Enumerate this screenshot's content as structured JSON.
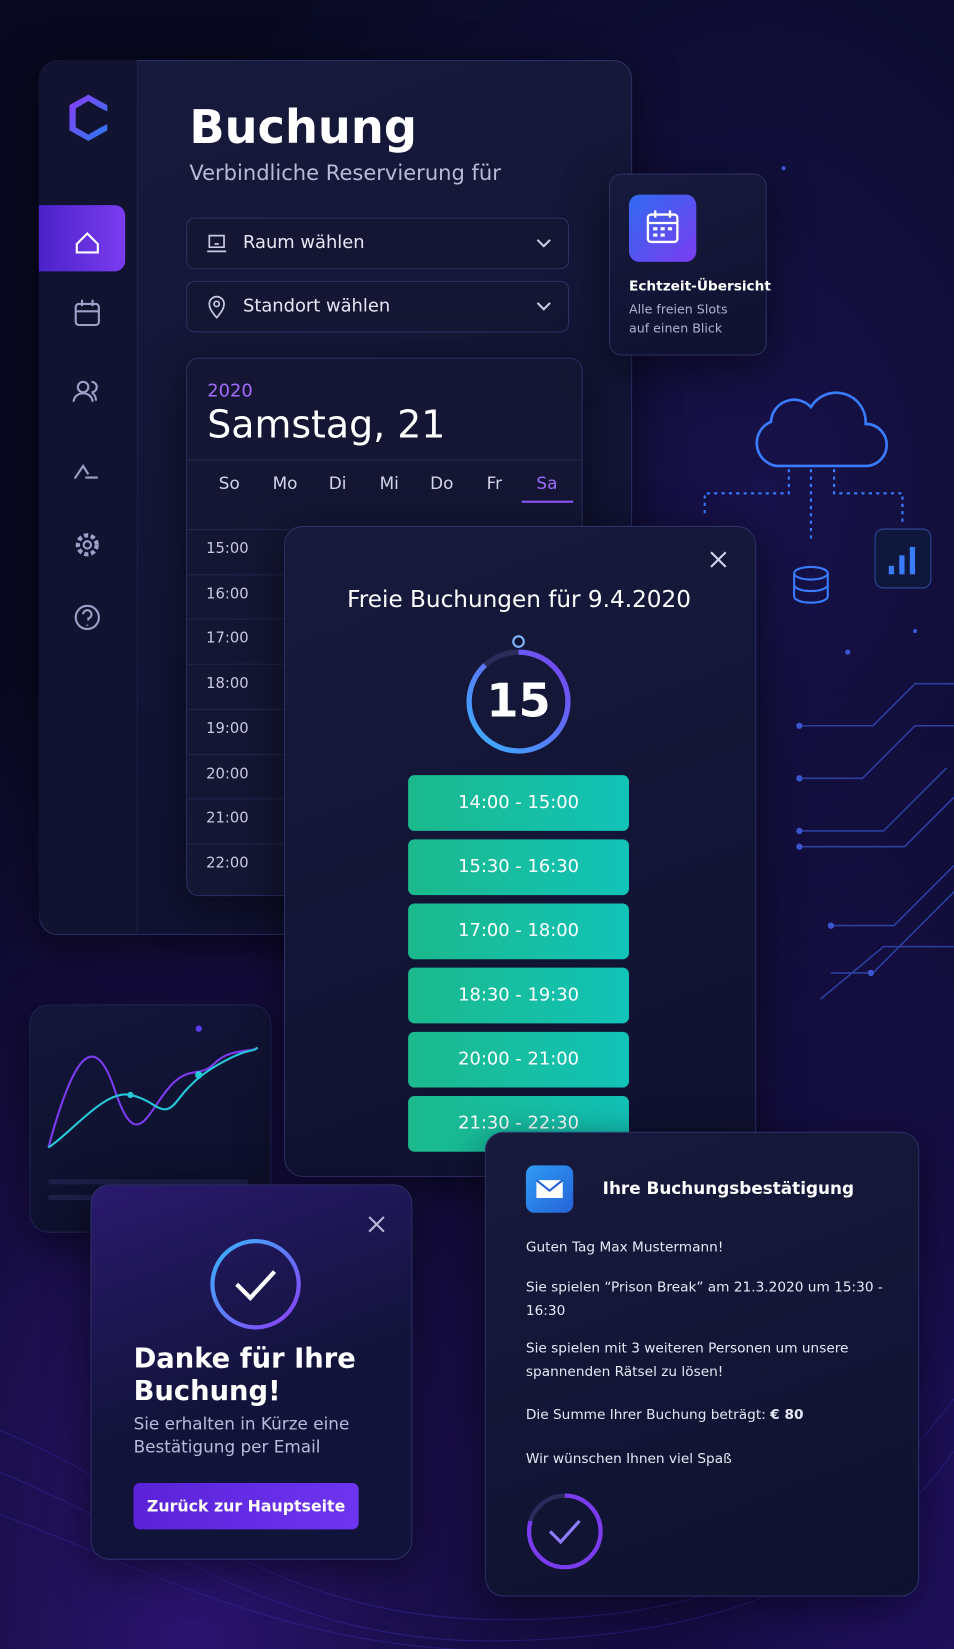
{
  "booking": {
    "title": "Buchung",
    "subtitle": "Verbindliche Reservierung für",
    "room_select": "Raum wählen",
    "location_select": "Standort wählen"
  },
  "calendar": {
    "year": "2020",
    "date": "Samstag, 21",
    "weekdays": [
      "So",
      "Mo",
      "Di",
      "Mi",
      "Do",
      "Fr",
      "Sa"
    ],
    "times": [
      "15:00",
      "16:00",
      "17:00",
      "18:00",
      "19:00",
      "20:00",
      "21:00",
      "22:00"
    ]
  },
  "realtime_card": {
    "title": "Echtzeit-Übersicht",
    "lines": [
      "Alle freien Slots",
      "auf einen Blick"
    ]
  },
  "slots_modal": {
    "title": "Freie Buchungen für 9.4.2020",
    "timer": "15",
    "slots": [
      "14:00 - 15:00",
      "15:30 - 16:30",
      "17:00 - 18:00",
      "18:30 - 19:30",
      "20:00 - 21:00",
      "21:30 - 22:30"
    ]
  },
  "thanks": {
    "title": "Danke für Ihre Buchung!",
    "text": "Sie erhalten in Kürze eine Bestätigung per Email",
    "button": "Zurück zur Hauptseite"
  },
  "confirmation": {
    "title": "Ihre Buchungsbestätigung",
    "greeting": "Guten Tag Max Mustermann!",
    "lines": [
      "Sie spielen “Prison Break” am 21.3.2020 um 15:30 - 16:30",
      "Sie spielen mit 3 weiteren Personen um unsere spannenden Rätsel zu lösen!"
    ],
    "sum_label": "Die Summe Ihrer Buchung beträgt:",
    "sum": "€ 80",
    "closing": "Wir wünschen Ihnen viel Spaß"
  }
}
